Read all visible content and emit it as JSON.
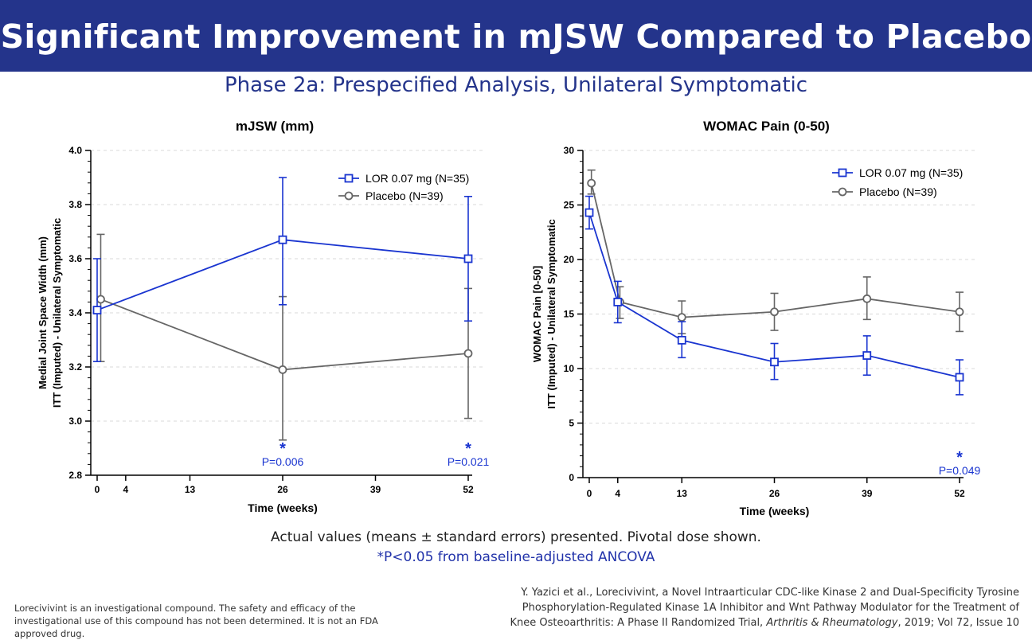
{
  "header": {
    "title": "Significant Improvement in mJSW Compared to Placebo",
    "subtitle": "Phase 2a: Prespecified Analysis, Unilateral Symptomatic"
  },
  "colors": {
    "banner": "#24348b",
    "lor": "#1a35d0",
    "placebo": "#666666"
  },
  "chart_data": [
    {
      "type": "line",
      "title": "mJSW (mm)",
      "xlabel": "Time (weeks)",
      "ylabel_line1": "Medial Joint Space Width (mm)",
      "ylabel_line2": "ITT (Imputed) - Unilateral Symptomatic",
      "x_ticks": [
        0,
        4,
        13,
        26,
        39,
        52
      ],
      "y_ticks": [
        "2.8",
        "3.0",
        "3.2",
        "3.4",
        "3.6",
        "3.8",
        "4.0"
      ],
      "ylim": [
        2.8,
        4.0
      ],
      "xlim": [
        0,
        52
      ],
      "legend_position": "top-right",
      "series": [
        {
          "name": "LOR 0.07 mg (N=35)",
          "x": [
            0,
            26,
            52
          ],
          "y": [
            3.41,
            3.67,
            3.6
          ],
          "err_low": [
            3.22,
            3.43,
            3.37
          ],
          "err_high": [
            3.6,
            3.9,
            3.83
          ]
        },
        {
          "name": "Placebo (N=39)",
          "x": [
            0.5,
            26,
            52
          ],
          "y": [
            3.45,
            3.19,
            3.25
          ],
          "err_low": [
            3.22,
            2.93,
            3.01
          ],
          "err_high": [
            3.69,
            3.46,
            3.49
          ]
        }
      ],
      "annotations": [
        {
          "x": 26,
          "star": "*",
          "label": "P=0.006"
        },
        {
          "x": 52,
          "star": "*",
          "label": "P=0.021"
        }
      ]
    },
    {
      "type": "line",
      "title": "WOMAC Pain (0-50)",
      "xlabel": "Time (weeks)",
      "ylabel_line1": "WOMAC Pain [0-50]",
      "ylabel_line2": "ITT (Imputed) - Unilateral Symptomatic",
      "x_ticks": [
        0,
        4,
        13,
        26,
        39,
        52
      ],
      "y_ticks": [
        "0",
        "5",
        "10",
        "15",
        "20",
        "25",
        "30"
      ],
      "ylim": [
        0,
        30
      ],
      "xlim": [
        0,
        52
      ],
      "legend_position": "top-right",
      "series": [
        {
          "name": "LOR 0.07 mg (N=35)",
          "x": [
            0,
            4,
            13,
            26,
            39,
            52
          ],
          "y": [
            24.3,
            16.1,
            12.6,
            10.6,
            11.2,
            9.2
          ],
          "err_low": [
            22.8,
            14.2,
            11.0,
            9.0,
            9.4,
            7.6
          ],
          "err_high": [
            25.8,
            18.0,
            14.3,
            12.3,
            13.0,
            10.8
          ]
        },
        {
          "name": "Placebo (N=39)",
          "x": [
            0.3,
            4.3,
            13,
            26,
            39,
            52
          ],
          "y": [
            27.0,
            16.1,
            14.7,
            15.2,
            16.4,
            15.2
          ],
          "err_low": [
            26.0,
            14.6,
            13.2,
            13.5,
            14.5,
            13.4
          ],
          "err_high": [
            28.2,
            17.5,
            16.2,
            16.9,
            18.4,
            17.0
          ]
        }
      ],
      "annotations": [
        {
          "x": 52,
          "star": "*",
          "label": "P=0.049"
        }
      ]
    }
  ],
  "footnotes": {
    "line1": "Actual values (means ± standard errors) presented. Pivotal dose shown.",
    "line2": "*P<0.05 from baseline-adjusted ANCOVA"
  },
  "disclaimer": "Lorecivivint is an investigational compound. The safety and efficacy of the investigational use of this compound has not been determined. It is not an FDA approved drug.",
  "citation": {
    "line1": "Y. Yazici et al., Lorecivivint, a Novel Intraarticular CDC-like Kinase 2 and Dual-Specificity Tyrosine",
    "line2": "Phosphorylation-Regulated Kinase 1A Inhibitor and Wnt Pathway Modulator for the Treatment of",
    "line3_prefix": "Knee Osteoarthritis: A Phase II Randomized Trial, ",
    "journal": "Arthritis & Rheumatology",
    "line3_suffix": ", 2019; Vol 72, Issue 10"
  }
}
